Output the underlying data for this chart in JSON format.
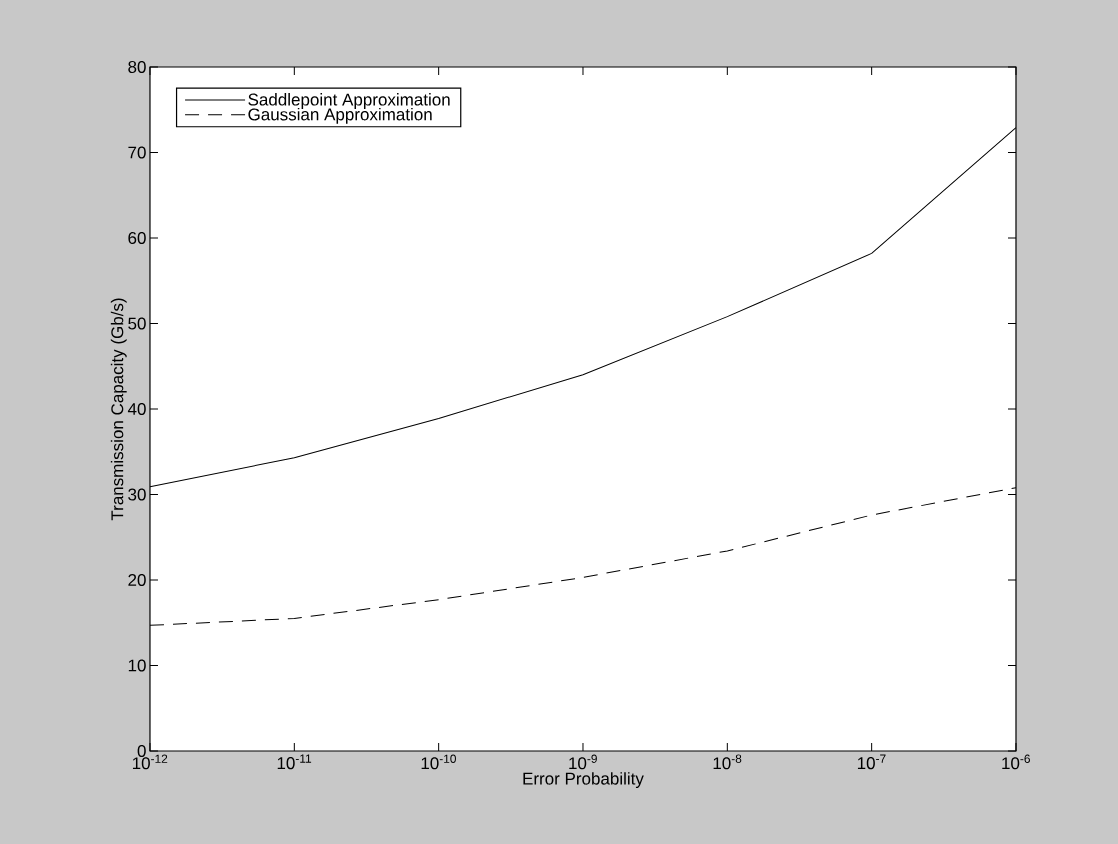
{
  "chart_data": {
    "type": "line",
    "xlabel": "Error Probability",
    "ylabel": "Transmission Capacity (Gb/s)",
    "x": [
      1e-12,
      1e-11,
      1e-10,
      1e-09,
      1e-08,
      1e-07,
      1e-06
    ],
    "series": [
      {
        "name": "Saddlepoint Approximation",
        "color": "#000000",
        "line_style": "solid",
        "values": [
          30.9,
          34.3,
          38.9,
          44.0,
          50.8,
          58.2,
          72.9
        ]
      },
      {
        "name": "Gaussian Approximation",
        "color": "#000000",
        "line_style": "dashed",
        "values": [
          14.7,
          15.5,
          17.7,
          20.3,
          23.4,
          27.6,
          30.8
        ]
      }
    ],
    "log": "x",
    "xlim": [
      1e-12,
      1e-06
    ],
    "xticks": [
      {
        "value": 1e-12,
        "label": "10$^{-12}$"
      },
      {
        "value": 1e-11,
        "label": "10$^{-11}$"
      },
      {
        "value": 1e-10,
        "label": "10$^{-10}$"
      },
      {
        "value": 1e-09,
        "label": "10$^{-9}$"
      },
      {
        "value": 1e-08,
        "label": "10$^{-8}$"
      },
      {
        "value": 1e-07,
        "label": "10$^{-7}$"
      },
      {
        "value": 1e-06,
        "label": "10$^{-6}$"
      }
    ],
    "ylim": [
      0,
      80
    ],
    "yticks": [
      0,
      10,
      20,
      30,
      40,
      50,
      60,
      70,
      80
    ],
    "grid": false,
    "legend": "top left",
    "marker": "none"
  }
}
